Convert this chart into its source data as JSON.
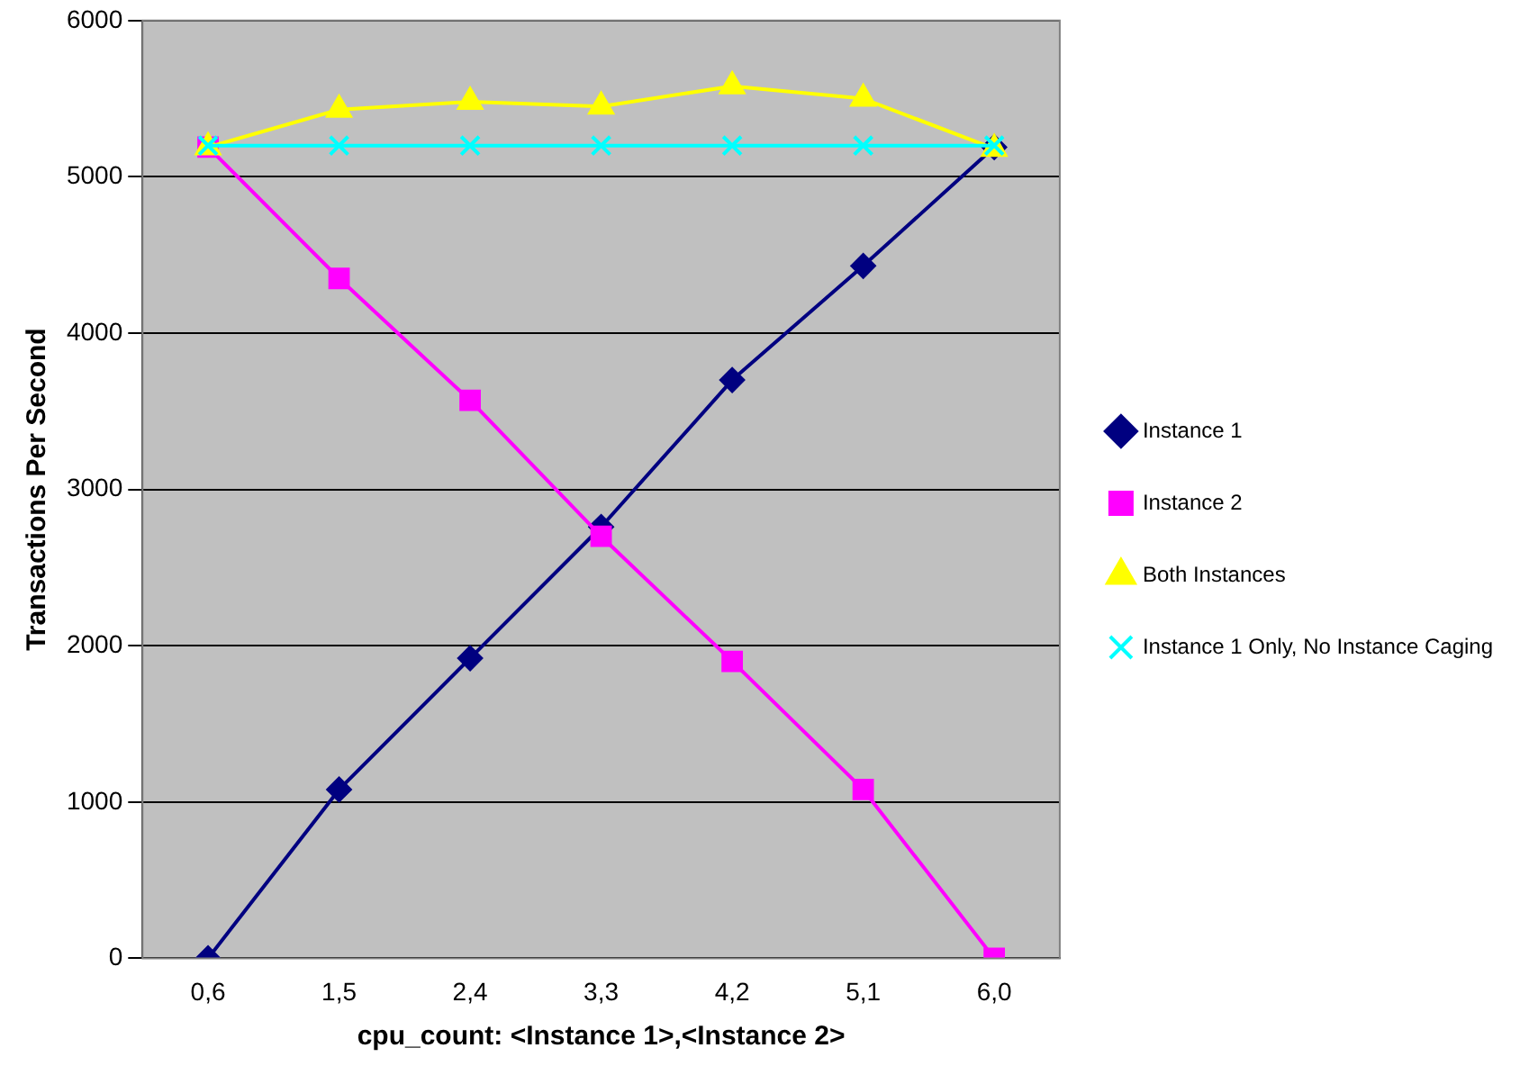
{
  "chart_data": {
    "type": "line",
    "xlabel": "cpu_count: <Instance 1>,<Instance 2>",
    "ylabel": "Transactions Per Second",
    "categories": [
      "0,6",
      "1,5",
      "2,4",
      "3,3",
      "4,2",
      "5,1",
      "6,0"
    ],
    "ylim": [
      0,
      6000
    ],
    "yticks": [
      0,
      1000,
      2000,
      3000,
      4000,
      5000,
      6000
    ],
    "grid": "y",
    "legend": "right",
    "series": [
      {
        "name": "Instance 1",
        "color": "#000080",
        "marker": "diamond",
        "values": [
          0,
          1080,
          1920,
          2760,
          3700,
          4430,
          5190
        ]
      },
      {
        "name": "Instance 2",
        "color": "#ff00ff",
        "marker": "square",
        "values": [
          5190,
          4350,
          3570,
          2700,
          1900,
          1080,
          0
        ]
      },
      {
        "name": "Both Instances",
        "color": "#ffff00",
        "marker": "triangle",
        "values": [
          5190,
          5430,
          5480,
          5450,
          5580,
          5500,
          5180
        ]
      },
      {
        "name": "Instance 1 Only, No Instance Caging",
        "color": "#00ffff",
        "marker": "cross",
        "values": [
          5200,
          5200,
          5200,
          5200,
          5200,
          5200,
          5200
        ]
      }
    ]
  }
}
